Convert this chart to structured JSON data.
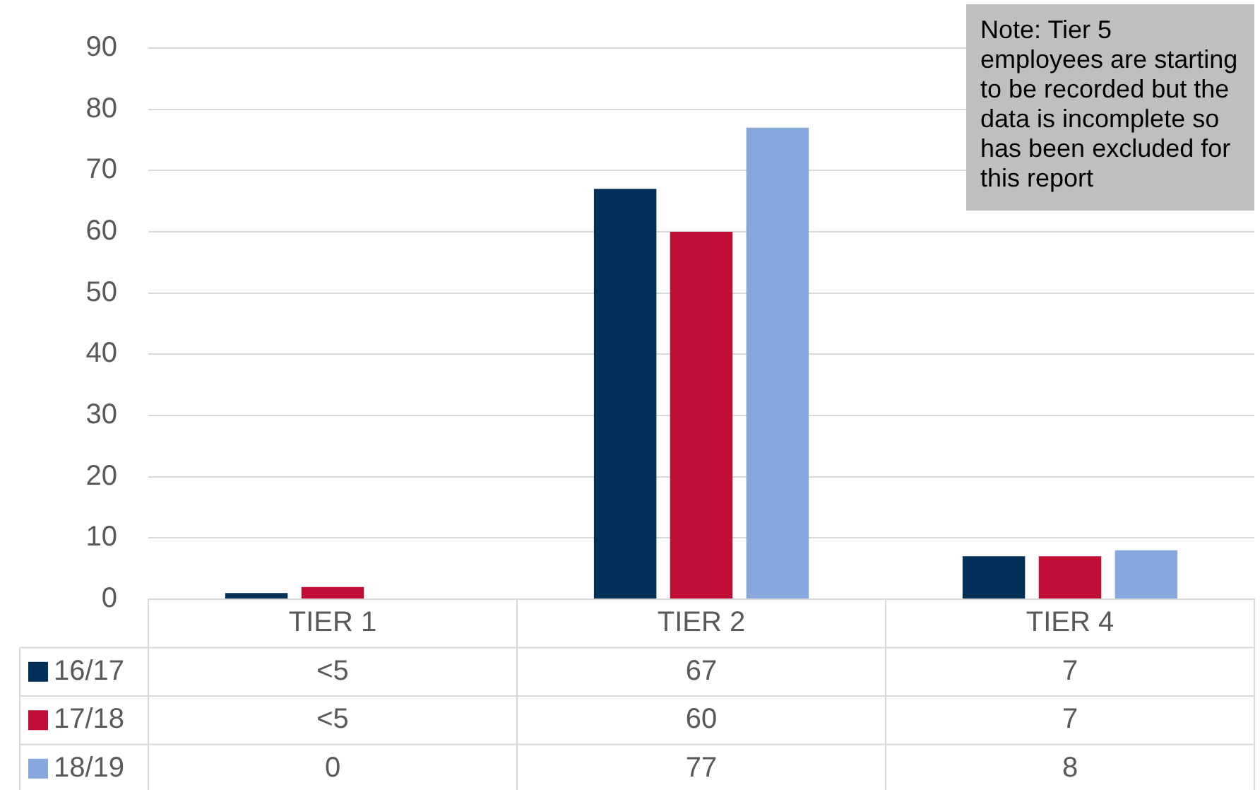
{
  "chart_data": {
    "type": "bar",
    "categories": [
      "TIER 1",
      "TIER 2",
      "TIER 4"
    ],
    "series": [
      {
        "name": "16/17",
        "color": "#003057",
        "values": [
          1,
          67,
          7
        ],
        "value_labels": [
          "<5",
          "67",
          "7"
        ]
      },
      {
        "name": "17/18",
        "color": "#c00d35",
        "values": [
          2,
          60,
          7
        ],
        "value_labels": [
          "<5",
          "60",
          "7"
        ]
      },
      {
        "name": "18/19",
        "color": "#86a8dc",
        "values": [
          0,
          77,
          8
        ],
        "value_labels": [
          "0",
          "77",
          "8"
        ]
      }
    ],
    "ylim": [
      0,
      90
    ],
    "yticks": [
      0,
      10,
      20,
      30,
      40,
      50,
      60,
      70,
      80,
      90
    ],
    "grid": "y",
    "legend": "bottom",
    "annotations": [
      "Note: Tier 5 employees are starting to be recorded but the data is incomplete so has been excluded for this report"
    ]
  }
}
